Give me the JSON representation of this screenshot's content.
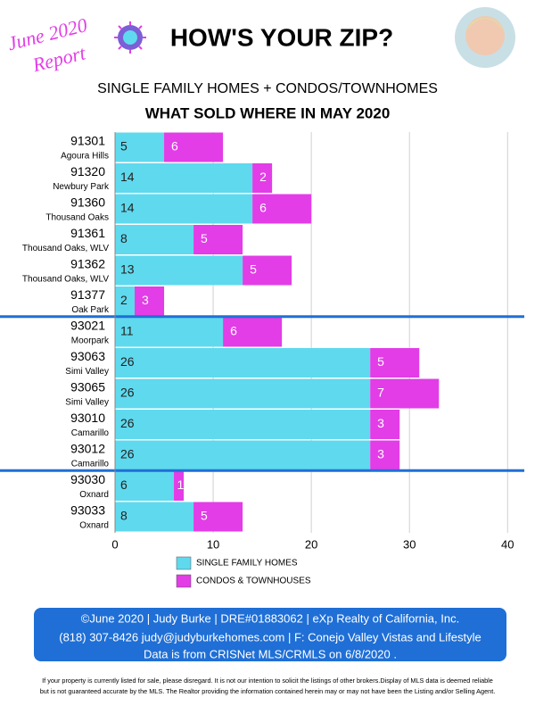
{
  "header": {
    "badge": [
      "June 2020",
      "Report"
    ],
    "title": "HOW'S YOUR ZIP?",
    "subtitle": "SINGLE FAMILY HOMES + CONDOS/TOWNHOMES"
  },
  "chart_data": {
    "type": "bar",
    "orientation": "horizontal",
    "stacked": true,
    "title": "WHAT SOLD WHERE IN MAY 2020",
    "categories": [
      "91301",
      "91320",
      "91360",
      "91361",
      "91362",
      "91377",
      "93021",
      "93063",
      "93065",
      "93010",
      "93012",
      "93030",
      "93033"
    ],
    "category_sublabels": [
      "Agoura Hills",
      "Newbury Park",
      "Thousand Oaks",
      "Thousand Oaks, WLV",
      "Thousand Oaks, WLV",
      "Oak Park",
      "Moorpark",
      "Simi Valley",
      "Simi Valley",
      "Camarillo",
      "Camarillo",
      "Oxnard",
      "Oxnard"
    ],
    "series": [
      {
        "name": "SINGLE FAMILY HOMES",
        "color": "#5fd9ee",
        "values": [
          5,
          14,
          14,
          8,
          13,
          2,
          11,
          26,
          26,
          26,
          26,
          6,
          8
        ]
      },
      {
        "name": "CONDOS & TOWNHOUSES",
        "color": "#e23de6",
        "values": [
          6,
          2,
          6,
          5,
          5,
          3,
          6,
          5,
          7,
          3,
          3,
          1,
          5
        ]
      }
    ],
    "xlim": [
      0,
      41.7
    ],
    "xticks": [
      0,
      10,
      20,
      30,
      40
    ],
    "grid": true
  },
  "footer": {
    "lines": [
      "©June 2020  |  Judy Burke  |  DRE#01883062  |  eXp Realty of California, Inc.",
      "(818) 307-8426  judy@judyburkehomes.com | F: Conejo Valley Vistas and Lifestyle",
      "Data is from CRISNet MLS/CRMLS on 6/8/2020 ."
    ],
    "disclaimer": [
      "If your property is currently listed for sale, please disregard. It is not our intention to solicit the listings of other brokers.Display of MLS data is deemed reliable",
      "but is not guaranteed accurate by the MLS. The Realtor providing the information contained herein may or may not have been the Listing and/or Selling Agent."
    ]
  }
}
